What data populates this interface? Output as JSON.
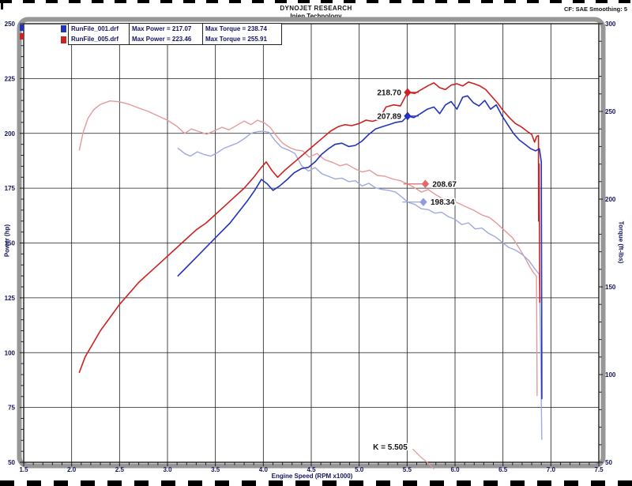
{
  "window": {
    "title": "DYNOJET RESEARCH",
    "subtitle": "Injen Technology",
    "settings": "CF: SAE  Smoothing: 5"
  },
  "legend": {
    "rows": [
      {
        "file": "RunFile_001.drf",
        "power": "Max Power = 217.07",
        "torque": "Max Torque = 238.74",
        "color": "#2233bb"
      },
      {
        "file": "RunFile_005.drf",
        "power": "Max Power = 223.46",
        "torque": "Max Torque = 255.91",
        "color": "#cc2222"
      }
    ]
  },
  "chart_data": {
    "type": "line",
    "xlabel": "Engine Speed (RPM x1000)",
    "ylabel_left": "Power (hp)",
    "ylabel_right": "Torque (ft-lbs)",
    "x_range": [
      1.5,
      7.5
    ],
    "x_major": 0.5,
    "x_minor": 0.1,
    "y_left_range": [
      50,
      250
    ],
    "y_left_major": 25,
    "y_left_minor": 5,
    "y_right_range": [
      50,
      300
    ],
    "y_right_major": 50,
    "y_right_minor": 10,
    "grid": true,
    "colors": {
      "grid": "#1b1b1b",
      "frame": "#1b1b1b",
      "tube": "#979797",
      "ticklabel": "#14145f",
      "annotation": "#151515"
    },
    "series": [
      {
        "name": "torque_run005",
        "axis": "right",
        "color": "#e49a9a",
        "width": 1.4,
        "points": [
          [
            2.08,
            228
          ],
          [
            2.12,
            238
          ],
          [
            2.17,
            246
          ],
          [
            2.23,
            251
          ],
          [
            2.3,
            254
          ],
          [
            2.4,
            256
          ],
          [
            2.5,
            255.5
          ],
          [
            2.6,
            254
          ],
          [
            2.7,
            252
          ],
          [
            2.8,
            250
          ],
          [
            2.9,
            247.5
          ],
          [
            3.0,
            245
          ],
          [
            3.1,
            241.5
          ],
          [
            3.18,
            237.5
          ],
          [
            3.25,
            240
          ],
          [
            3.33,
            238.5
          ],
          [
            3.41,
            237
          ],
          [
            3.49,
            239
          ],
          [
            3.57,
            241
          ],
          [
            3.64,
            239.5
          ],
          [
            3.72,
            242
          ],
          [
            3.8,
            244.5
          ],
          [
            3.87,
            242.5
          ],
          [
            3.94,
            245
          ],
          [
            4.01,
            243.5
          ],
          [
            4.07,
            241
          ],
          [
            4.13,
            236.5
          ],
          [
            4.2,
            232
          ],
          [
            4.27,
            229.5
          ],
          [
            4.34,
            228
          ],
          [
            4.41,
            227.5
          ],
          [
            4.48,
            224
          ],
          [
            4.56,
            226
          ],
          [
            4.64,
            222.5
          ],
          [
            4.72,
            221
          ],
          [
            4.8,
            219
          ],
          [
            4.87,
            220
          ],
          [
            4.95,
            217.5
          ],
          [
            5.03,
            215.5
          ],
          [
            5.11,
            216.5
          ],
          [
            5.19,
            213.5
          ],
          [
            5.27,
            213
          ],
          [
            5.35,
            211.5
          ],
          [
            5.43,
            210.5
          ],
          [
            5.505,
            208.67
          ],
          [
            5.58,
            206.5
          ],
          [
            5.65,
            204
          ],
          [
            5.72,
            205.5
          ],
          [
            5.8,
            202.5
          ],
          [
            5.88,
            200
          ],
          [
            5.96,
            199.5
          ],
          [
            6.04,
            197.5
          ],
          [
            6.12,
            195.5
          ],
          [
            6.2,
            193.5
          ],
          [
            6.28,
            191
          ],
          [
            6.36,
            189.5
          ],
          [
            6.44,
            186
          ],
          [
            6.52,
            182
          ],
          [
            6.6,
            178
          ],
          [
            6.67,
            172
          ],
          [
            6.73,
            166.5
          ],
          [
            6.78,
            161.5
          ],
          [
            6.82,
            158
          ],
          [
            6.85,
            156
          ],
          [
            6.856,
            88
          ]
        ]
      },
      {
        "name": "torque_run001",
        "axis": "right",
        "color": "#9fa8e0",
        "width": 1.4,
        "points": [
          [
            3.11,
            229
          ],
          [
            3.18,
            226
          ],
          [
            3.24,
            224.5
          ],
          [
            3.31,
            227
          ],
          [
            3.38,
            225.5
          ],
          [
            3.45,
            224.5
          ],
          [
            3.52,
            226.5
          ],
          [
            3.59,
            229
          ],
          [
            3.66,
            230.5
          ],
          [
            3.73,
            232
          ],
          [
            3.8,
            234.5
          ],
          [
            3.87,
            237.5
          ],
          [
            3.94,
            238.5
          ],
          [
            4.0,
            238.7
          ],
          [
            4.06,
            238
          ],
          [
            4.12,
            233.5
          ],
          [
            4.19,
            229.5
          ],
          [
            4.26,
            228
          ],
          [
            4.33,
            226
          ],
          [
            4.4,
            219
          ],
          [
            4.47,
            216
          ],
          [
            4.54,
            218
          ],
          [
            4.61,
            214.5
          ],
          [
            4.68,
            213
          ],
          [
            4.75,
            211.5
          ],
          [
            4.82,
            212
          ],
          [
            4.89,
            210
          ],
          [
            4.96,
            210.5
          ],
          [
            5.03,
            207.5
          ],
          [
            5.1,
            209
          ],
          [
            5.17,
            206.5
          ],
          [
            5.24,
            205.5
          ],
          [
            5.31,
            205
          ],
          [
            5.38,
            204
          ],
          [
            5.45,
            201
          ],
          [
            5.505,
            198.34
          ],
          [
            5.58,
            197
          ],
          [
            5.65,
            194.5
          ],
          [
            5.72,
            194
          ],
          [
            5.79,
            192
          ],
          [
            5.86,
            192.5
          ],
          [
            5.93,
            190
          ],
          [
            6.0,
            188.5
          ],
          [
            6.07,
            185.5
          ],
          [
            6.14,
            186.5
          ],
          [
            6.21,
            183
          ],
          [
            6.28,
            183.5
          ],
          [
            6.35,
            180.5
          ],
          [
            6.42,
            178.5
          ],
          [
            6.49,
            175.5
          ],
          [
            6.56,
            172.5
          ],
          [
            6.63,
            171
          ],
          [
            6.7,
            168.5
          ],
          [
            6.77,
            165
          ],
          [
            6.83,
            160.5
          ],
          [
            6.88,
            157
          ],
          [
            6.897,
            100
          ],
          [
            6.905,
            63
          ]
        ]
      },
      {
        "name": "power_run005",
        "axis": "left",
        "color": "#cc2222",
        "width": 1.6,
        "points": [
          [
            2.08,
            91
          ],
          [
            2.14,
            98
          ],
          [
            2.22,
            104
          ],
          [
            2.3,
            110
          ],
          [
            2.4,
            116
          ],
          [
            2.5,
            122
          ],
          [
            2.6,
            127
          ],
          [
            2.7,
            132
          ],
          [
            2.8,
            136
          ],
          [
            2.9,
            140
          ],
          [
            3.0,
            144
          ],
          [
            3.1,
            148
          ],
          [
            3.2,
            152
          ],
          [
            3.3,
            156
          ],
          [
            3.4,
            159
          ],
          [
            3.5,
            163
          ],
          [
            3.6,
            167
          ],
          [
            3.7,
            171
          ],
          [
            3.8,
            175
          ],
          [
            3.9,
            180
          ],
          [
            3.97,
            184
          ],
          [
            4.03,
            187
          ],
          [
            4.09,
            183
          ],
          [
            4.15,
            180
          ],
          [
            4.22,
            183
          ],
          [
            4.3,
            186
          ],
          [
            4.38,
            189
          ],
          [
            4.46,
            192
          ],
          [
            4.54,
            195
          ],
          [
            4.62,
            198
          ],
          [
            4.7,
            201
          ],
          [
            4.78,
            203
          ],
          [
            4.85,
            204
          ],
          [
            4.92,
            203.5
          ],
          [
            5.0,
            204.5
          ],
          [
            5.07,
            206
          ],
          [
            5.14,
            205.5
          ],
          [
            5.21,
            206.5
          ],
          [
            5.28,
            212
          ],
          [
            5.36,
            213
          ],
          [
            5.43,
            212.5
          ],
          [
            5.505,
            218.7
          ],
          [
            5.58,
            218.2
          ],
          [
            5.65,
            220
          ],
          [
            5.72,
            221.8
          ],
          [
            5.78,
            223
          ],
          [
            5.84,
            220.8
          ],
          [
            5.9,
            220
          ],
          [
            5.96,
            222
          ],
          [
            6.02,
            222.6
          ],
          [
            6.08,
            221.6
          ],
          [
            6.14,
            223.4
          ],
          [
            6.2,
            222.6
          ],
          [
            6.26,
            221.6
          ],
          [
            6.32,
            220
          ],
          [
            6.38,
            217
          ],
          [
            6.44,
            214
          ],
          [
            6.5,
            210.5
          ],
          [
            6.57,
            207
          ],
          [
            6.63,
            204.5
          ],
          [
            6.69,
            203
          ],
          [
            6.75,
            201
          ],
          [
            6.8,
            199.5
          ],
          [
            6.83,
            196
          ],
          [
            6.85,
            198.5
          ],
          [
            6.87,
            199
          ],
          [
            6.872,
            160
          ],
          [
            6.878,
            186
          ],
          [
            6.884,
            123
          ]
        ]
      },
      {
        "name": "power_run001",
        "axis": "left",
        "color": "#2233bb",
        "width": 1.6,
        "points": [
          [
            3.11,
            135
          ],
          [
            3.2,
            139
          ],
          [
            3.29,
            143
          ],
          [
            3.38,
            147
          ],
          [
            3.47,
            151
          ],
          [
            3.56,
            155
          ],
          [
            3.65,
            159
          ],
          [
            3.74,
            164
          ],
          [
            3.83,
            169
          ],
          [
            3.91,
            174
          ],
          [
            3.98,
            179
          ],
          [
            4.04,
            177
          ],
          [
            4.1,
            174
          ],
          [
            4.17,
            176
          ],
          [
            4.25,
            179
          ],
          [
            4.32,
            182
          ],
          [
            4.4,
            184
          ],
          [
            4.47,
            184.5
          ],
          [
            4.54,
            187
          ],
          [
            4.61,
            190.5
          ],
          [
            4.68,
            193
          ],
          [
            4.75,
            195
          ],
          [
            4.82,
            195.5
          ],
          [
            4.89,
            194
          ],
          [
            4.96,
            194.5
          ],
          [
            5.03,
            196.5
          ],
          [
            5.1,
            199.5
          ],
          [
            5.17,
            202
          ],
          [
            5.24,
            203
          ],
          [
            5.31,
            204
          ],
          [
            5.38,
            205
          ],
          [
            5.45,
            205.5
          ],
          [
            5.505,
            207.9
          ],
          [
            5.57,
            207.2
          ],
          [
            5.64,
            209
          ],
          [
            5.71,
            211
          ],
          [
            5.78,
            212
          ],
          [
            5.84,
            209
          ],
          [
            5.9,
            213
          ],
          [
            5.96,
            214.5
          ],
          [
            6.02,
            211
          ],
          [
            6.08,
            216.5
          ],
          [
            6.13,
            217.1
          ],
          [
            6.19,
            214
          ],
          [
            6.25,
            212.5
          ],
          [
            6.31,
            215
          ],
          [
            6.37,
            211
          ],
          [
            6.43,
            213
          ],
          [
            6.49,
            208
          ],
          [
            6.55,
            204
          ],
          [
            6.61,
            200
          ],
          [
            6.67,
            197
          ],
          [
            6.73,
            195
          ],
          [
            6.79,
            193
          ],
          [
            6.84,
            192
          ],
          [
            6.88,
            193
          ],
          [
            6.9,
            187
          ],
          [
            6.903,
            130
          ],
          [
            6.906,
            79
          ]
        ]
      },
      {
        "name": "stray_tail_run005",
        "axis": "left",
        "color": "#e49a9a",
        "width": 1.2,
        "points": [
          [
            5.56,
            56
          ],
          [
            5.64,
            52.5
          ],
          [
            5.71,
            50
          ],
          [
            5.78,
            47
          ]
        ]
      }
    ],
    "annotations": [
      {
        "text": "218.70",
        "marker": "diamond",
        "color": "#cc2222",
        "axis": "left",
        "x": 5.505,
        "value": 218.7,
        "label_side": "left",
        "connect_to": 5.62
      },
      {
        "text": "207.89",
        "marker": "diamond",
        "color": "#2233bb",
        "axis": "left",
        "x": 5.505,
        "value": 207.89,
        "label_side": "left",
        "connect_to": 5.62
      },
      {
        "text": "208.67",
        "marker": "diamond",
        "color": "#e06a6a",
        "axis": "right",
        "x": 5.69,
        "value": 208.67,
        "label_side": "right",
        "connect_to": 5.46
      },
      {
        "text": "198.34",
        "marker": "diamond",
        "color": "#8f9ce0",
        "axis": "right",
        "x": 5.67,
        "value": 198.34,
        "label_side": "right",
        "connect_to": 5.45
      },
      {
        "text": "K = 5.505",
        "marker": "none",
        "color": "#151515",
        "axis": "left",
        "x": 5.07,
        "value": 57,
        "label_side": "right",
        "connect_to": null
      }
    ]
  }
}
